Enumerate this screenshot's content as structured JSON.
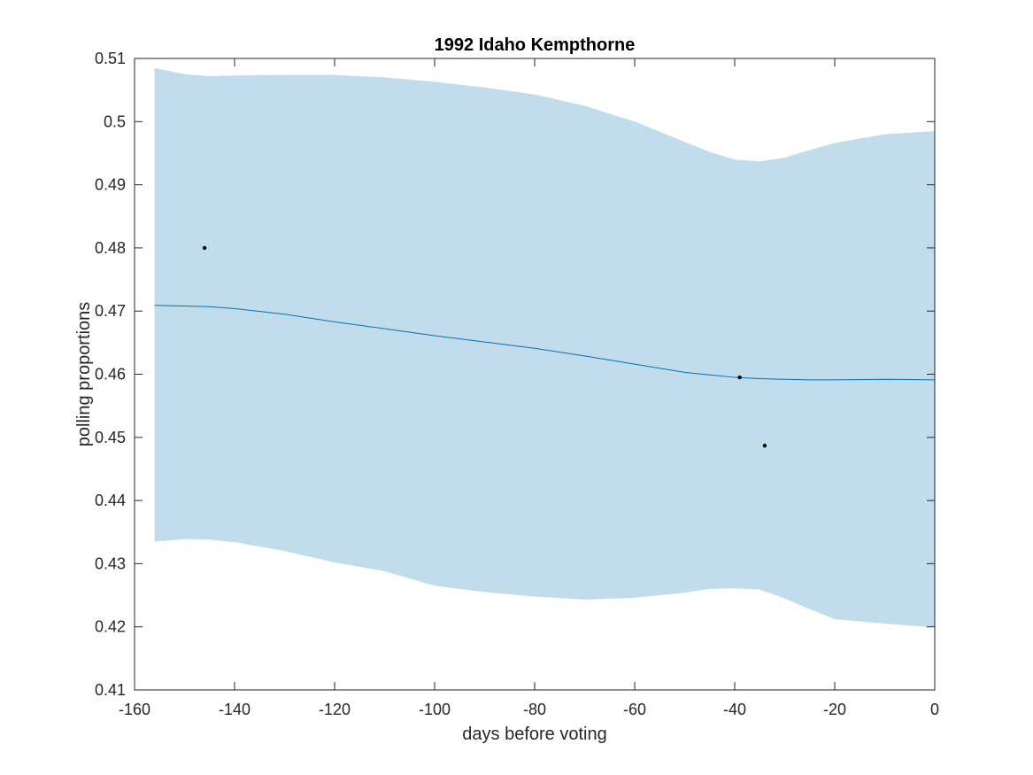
{
  "chart_data": {
    "type": "line",
    "title": "1992 Idaho Kempthorne",
    "xlabel": "days before voting",
    "ylabel": "polling proportions",
    "xlim": [
      -160,
      0
    ],
    "ylim": [
      0.41,
      0.51
    ],
    "x_ticks": [
      -160,
      -140,
      -120,
      -100,
      -80,
      -60,
      -40,
      -20,
      0
    ],
    "x_tick_labels": [
      "-160",
      "-140",
      "-120",
      "-100",
      "-80",
      "-60",
      "-40",
      "-20",
      "0"
    ],
    "y_ticks": [
      0.41,
      0.42,
      0.43,
      0.44,
      0.45,
      0.46,
      0.47,
      0.48,
      0.49,
      0.5,
      0.51
    ],
    "y_tick_labels": [
      "0.41",
      "0.42",
      "0.43",
      "0.44",
      "0.45",
      "0.46",
      "0.47",
      "0.48",
      "0.49",
      "0.5",
      "0.51"
    ],
    "grid": false,
    "colors": {
      "band": "#c1dcea",
      "line": "#0072bd",
      "points": "#000000",
      "axes": "#262626"
    },
    "band": {
      "x": [
        -156,
        -150,
        -145,
        -140,
        -130,
        -120,
        -110,
        -100,
        -90,
        -80,
        -70,
        -60,
        -50,
        -45,
        -40,
        -35,
        -30,
        -25,
        -20,
        -10,
        0
      ],
      "upper": [
        0.5085,
        0.5075,
        0.5072,
        0.5073,
        0.5074,
        0.5074,
        0.507,
        0.5063,
        0.5054,
        0.5043,
        0.5025,
        0.5,
        0.4968,
        0.4952,
        0.494,
        0.4937,
        0.4943,
        0.4955,
        0.4966,
        0.498,
        0.4985
      ],
      "lower": [
        0.4335,
        0.4339,
        0.4338,
        0.4334,
        0.432,
        0.4302,
        0.4288,
        0.4265,
        0.4255,
        0.4248,
        0.4243,
        0.4246,
        0.4254,
        0.426,
        0.4261,
        0.4259,
        0.4245,
        0.4228,
        0.4212,
        0.4205,
        0.4199
      ]
    },
    "series": [
      {
        "type": "line",
        "x": [
          -156,
          -150,
          -145,
          -140,
          -130,
          -120,
          -110,
          -100,
          -90,
          -80,
          -70,
          -60,
          -50,
          -45,
          -40,
          -35,
          -30,
          -25,
          -20,
          -10,
          0
        ],
        "values": [
          0.4709,
          0.4708,
          0.4707,
          0.4704,
          0.4695,
          0.4683,
          0.4672,
          0.4661,
          0.4651,
          0.4641,
          0.4629,
          0.4616,
          0.4603,
          0.4599,
          0.4595,
          0.4593,
          0.4592,
          0.4591,
          0.4591,
          0.4592,
          0.4591
        ]
      },
      {
        "type": "scatter",
        "x": [
          -146,
          -39,
          -34
        ],
        "values": [
          0.48,
          0.4595,
          0.4487
        ]
      }
    ]
  }
}
